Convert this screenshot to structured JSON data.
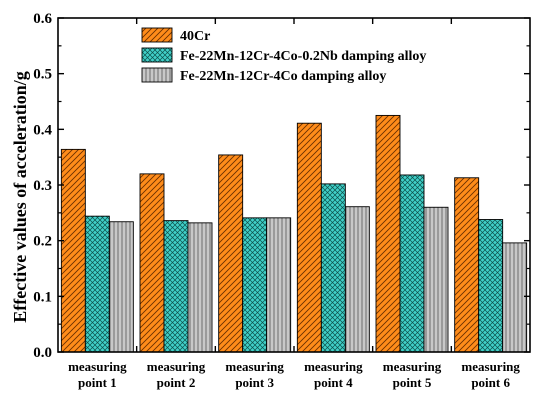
{
  "chart_data": {
    "type": "bar",
    "categories": [
      [
        "measuring",
        "point 1"
      ],
      [
        "measuring",
        "point 2"
      ],
      [
        "measuring",
        "point 3"
      ],
      [
        "measuring",
        "point 4"
      ],
      [
        "measuring",
        "point 5"
      ],
      [
        "measuring",
        "point 6"
      ]
    ],
    "series": [
      {
        "name": "40Cr",
        "values": [
          0.364,
          0.32,
          0.354,
          0.411,
          0.425,
          0.313
        ],
        "color": "#ff8c1a",
        "pattern": "diagonal-hatch"
      },
      {
        "name": "Fe-22Mn-12Cr-4Co-0.2Nb damping alloy",
        "values": [
          0.244,
          0.236,
          0.241,
          0.302,
          0.318,
          0.238
        ],
        "color": "#40d0c8",
        "pattern": "crosshatch"
      },
      {
        "name": "Fe-22Mn-12Cr-4Co damping alloy",
        "values": [
          0.234,
          0.232,
          0.241,
          0.261,
          0.26,
          0.196
        ],
        "color": "#c0c0c0",
        "pattern": "vertical-lines"
      }
    ],
    "ylabel": "Effective values of acceleration/g",
    "xlabel": "",
    "ylim": [
      0.0,
      0.6
    ],
    "yticks": [
      "0.0",
      "0.1",
      "0.2",
      "0.3",
      "0.4",
      "0.5",
      "0.6"
    ],
    "legend_position": "top-left",
    "grid": false
  }
}
